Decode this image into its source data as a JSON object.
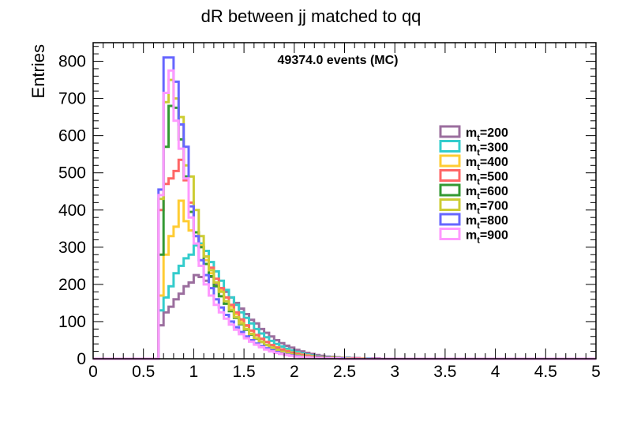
{
  "chart_data": {
    "type": "line",
    "style": "step-histogram",
    "title": "dR between jj matched to qq",
    "annotation": "49374.0 events (MC)",
    "xlabel": "",
    "ylabel": "Entries",
    "xlim": [
      0,
      5
    ],
    "ylim": [
      0,
      850
    ],
    "xticks": [
      "0",
      "0.5",
      "1",
      "1.5",
      "2",
      "2.5",
      "3",
      "3.5",
      "4",
      "4.5",
      "5"
    ],
    "yticks": [
      "0",
      "100",
      "200",
      "300",
      "400",
      "500",
      "600",
      "700",
      "800"
    ],
    "bin_width": 0.05,
    "bin_start": 0,
    "grid": false,
    "legend_position": "right",
    "series": [
      {
        "name_main": "m",
        "name_sub": "t",
        "name_value": "=200",
        "color": "#9b6e9e",
        "values": [
          0,
          0,
          0,
          0,
          0,
          0,
          0,
          0,
          0,
          0,
          0,
          0,
          0,
          90,
          125,
          140,
          160,
          175,
          195,
          205,
          225,
          220,
          210,
          220,
          200,
          190,
          180,
          165,
          150,
          135,
          120,
          105,
          95,
          80,
          70,
          60,
          50,
          42,
          35,
          30,
          24,
          20,
          16,
          13,
          10,
          8,
          6,
          5,
          4,
          3,
          3,
          2,
          2,
          1,
          1,
          1,
          1,
          0,
          0,
          0,
          0,
          0,
          0,
          0,
          0,
          0,
          0,
          0,
          0,
          0,
          0,
          0,
          0,
          0,
          0,
          0,
          0,
          0,
          0,
          0,
          0,
          0,
          0,
          0,
          0,
          0,
          0,
          0,
          0,
          0,
          0,
          0,
          0,
          0,
          0,
          0,
          0,
          0,
          0,
          0
        ]
      },
      {
        "name_main": "m",
        "name_sub": "t",
        "name_value": "=300",
        "color": "#33cccc",
        "values": [
          0,
          0,
          0,
          0,
          0,
          0,
          0,
          0,
          0,
          0,
          0,
          0,
          0,
          130,
          165,
          195,
          230,
          250,
          270,
          280,
          305,
          310,
          290,
          260,
          235,
          210,
          185,
          165,
          145,
          125,
          110,
          95,
          80,
          68,
          58,
          48,
          40,
          33,
          27,
          22,
          18,
          14,
          11,
          9,
          7,
          5,
          4,
          3,
          3,
          2,
          2,
          1,
          1,
          1,
          1,
          0,
          0,
          0,
          0,
          0,
          0,
          0,
          0,
          0,
          0,
          0,
          0,
          0,
          0,
          0,
          0,
          0,
          0,
          0,
          0,
          0,
          0,
          0,
          0,
          0,
          0,
          0,
          0,
          0,
          0,
          0,
          0,
          0,
          0,
          0,
          0,
          0,
          0,
          0,
          0,
          0,
          0,
          0,
          0,
          0
        ]
      },
      {
        "name_main": "m",
        "name_sub": "t",
        "name_value": "=400",
        "color": "#ffcc33",
        "values": [
          0,
          0,
          0,
          0,
          0,
          0,
          0,
          0,
          0,
          0,
          0,
          0,
          0,
          170,
          280,
          330,
          355,
          425,
          370,
          345,
          330,
          305,
          265,
          230,
          205,
          185,
          165,
          140,
          120,
          102,
          88,
          75,
          63,
          53,
          45,
          37,
          31,
          25,
          21,
          17,
          14,
          11,
          9,
          7,
          5,
          4,
          3,
          3,
          2,
          2,
          1,
          1,
          1,
          1,
          0,
          0,
          0,
          0,
          0,
          0,
          0,
          0,
          0,
          0,
          0,
          0,
          0,
          0,
          0,
          0,
          0,
          0,
          0,
          0,
          0,
          0,
          0,
          0,
          0,
          0,
          0,
          0,
          0,
          0,
          0,
          0,
          0,
          0,
          0,
          0,
          0,
          0,
          0,
          0,
          0,
          0,
          0,
          0,
          0,
          0
        ]
      },
      {
        "name_main": "m",
        "name_sub": "t",
        "name_value": "=500",
        "color": "#ff6666",
        "values": [
          0,
          0,
          0,
          0,
          0,
          0,
          0,
          0,
          0,
          0,
          0,
          0,
          0,
          400,
          470,
          485,
          505,
          535,
          480,
          420,
          340,
          300,
          275,
          245,
          215,
          190,
          165,
          145,
          125,
          106,
          90,
          76,
          64,
          54,
          45,
          37,
          30,
          25,
          20,
          16,
          13,
          10,
          8,
          6,
          5,
          4,
          3,
          2,
          2,
          1,
          1,
          1,
          1,
          0,
          0,
          0,
          0,
          0,
          0,
          0,
          0,
          0,
          0,
          0,
          0,
          0,
          0,
          0,
          0,
          0,
          0,
          0,
          0,
          0,
          0,
          0,
          0,
          0,
          0,
          0,
          0,
          0,
          0,
          0,
          0,
          0,
          0,
          0,
          0,
          0,
          0,
          0,
          0,
          0,
          0,
          0,
          0,
          0,
          0,
          0
        ]
      },
      {
        "name_main": "m",
        "name_sub": "t",
        "name_value": "=600",
        "color": "#339933",
        "values": [
          0,
          0,
          0,
          0,
          0,
          0,
          0,
          0,
          0,
          0,
          0,
          0,
          0,
          280,
          570,
          680,
          675,
          590,
          490,
          395,
          340,
          300,
          255,
          222,
          195,
          168,
          148,
          128,
          110,
          93,
          78,
          65,
          54,
          45,
          37,
          30,
          24,
          19,
          15,
          12,
          9,
          7,
          5,
          4,
          3,
          3,
          2,
          2,
          1,
          1,
          1,
          0,
          0,
          0,
          0,
          0,
          0,
          0,
          0,
          0,
          0,
          0,
          0,
          0,
          0,
          0,
          0,
          0,
          0,
          0,
          0,
          0,
          0,
          0,
          0,
          0,
          0,
          0,
          0,
          0,
          0,
          0,
          0,
          0,
          0,
          0,
          0,
          0,
          0,
          0,
          0,
          0,
          0,
          0,
          0,
          0,
          0,
          0,
          0,
          0
        ]
      },
      {
        "name_main": "m",
        "name_sub": "t",
        "name_value": "=700",
        "color": "#cccc33",
        "values": [
          0,
          0,
          0,
          0,
          0,
          0,
          0,
          0,
          0,
          0,
          0,
          0,
          0,
          430,
          690,
          750,
          700,
          650,
          520,
          490,
          400,
          330,
          275,
          238,
          205,
          180,
          155,
          132,
          112,
          95,
          80,
          67,
          55,
          45,
          37,
          30,
          24,
          19,
          15,
          12,
          9,
          7,
          5,
          4,
          3,
          3,
          2,
          2,
          1,
          1,
          1,
          0,
          0,
          0,
          0,
          0,
          0,
          0,
          0,
          0,
          0,
          0,
          0,
          0,
          0,
          0,
          0,
          0,
          0,
          0,
          0,
          0,
          0,
          0,
          0,
          0,
          0,
          0,
          0,
          0,
          0,
          0,
          0,
          0,
          0,
          0,
          0,
          0,
          0,
          0,
          0,
          0,
          0,
          0,
          0,
          0,
          0,
          0,
          0,
          0
        ]
      },
      {
        "name_main": "m",
        "name_sub": "t",
        "name_value": "=800",
        "color": "#6666ff",
        "values": [
          0,
          0,
          0,
          0,
          0,
          0,
          0,
          0,
          0,
          0,
          0,
          0,
          0,
          455,
          810,
          810,
          745,
          630,
          570,
          410,
          330,
          265,
          225,
          190,
          160,
          138,
          118,
          100,
          85,
          72,
          60,
          50,
          41,
          34,
          28,
          23,
          18,
          14,
          11,
          9,
          7,
          5,
          4,
          3,
          3,
          2,
          2,
          1,
          1,
          1,
          0,
          0,
          0,
          0,
          0,
          0,
          0,
          0,
          0,
          0,
          0,
          0,
          0,
          0,
          0,
          0,
          0,
          0,
          0,
          0,
          0,
          0,
          0,
          0,
          0,
          0,
          0,
          0,
          0,
          0,
          0,
          0,
          0,
          0,
          0,
          0,
          0,
          0,
          0,
          0,
          0,
          0,
          0,
          0,
          0,
          0,
          0,
          0,
          0,
          0
        ]
      },
      {
        "name_main": "m",
        "name_sub": "t",
        "name_value": "=900",
        "color": "#ff99ff",
        "values": [
          0,
          0,
          0,
          0,
          0,
          0,
          0,
          0,
          0,
          0,
          0,
          0,
          0,
          440,
          715,
          775,
          640,
          565,
          485,
          380,
          310,
          250,
          200,
          170,
          145,
          125,
          108,
          92,
          78,
          66,
          55,
          46,
          38,
          31,
          25,
          20,
          16,
          13,
          10,
          8,
          6,
          5,
          4,
          3,
          2,
          2,
          1,
          1,
          1,
          0,
          0,
          0,
          0,
          0,
          0,
          0,
          0,
          0,
          0,
          0,
          0,
          0,
          0,
          0,
          0,
          0,
          0,
          0,
          0,
          0,
          0,
          0,
          0,
          0,
          0,
          0,
          0,
          0,
          0,
          0,
          0,
          0,
          0,
          0,
          0,
          0,
          0,
          0,
          0,
          0,
          0,
          0,
          0,
          0,
          0,
          0,
          0,
          0,
          0,
          0
        ]
      }
    ]
  }
}
